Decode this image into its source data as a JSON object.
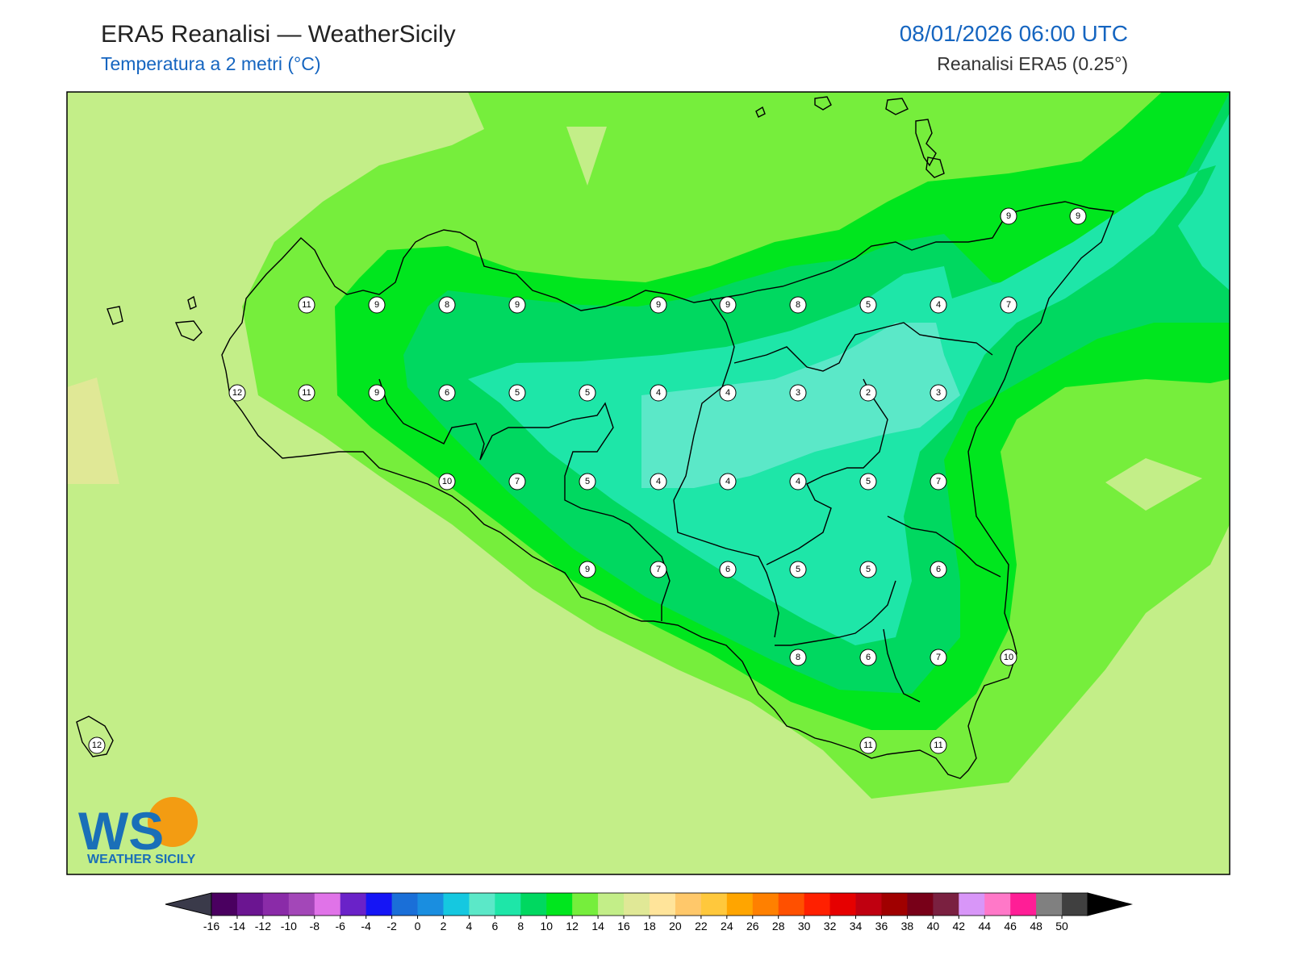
{
  "header": {
    "title": "ERA5 Reanalisi — WeatherSicily",
    "subtitle": "Temperatura a 2 metri (°C)",
    "datetime": "08/01/2026 06:00 UTC",
    "source": "Reanalisi ERA5 (0.25°)"
  },
  "logo": {
    "initials": "WS",
    "name": "WEATHER SICILY"
  },
  "colorbar": {
    "ticks": [
      "-16",
      "-14",
      "-12",
      "-10",
      "-8",
      "-6",
      "-4",
      "-2",
      "0",
      "2",
      "4",
      "6",
      "8",
      "10",
      "12",
      "14",
      "16",
      "18",
      "20",
      "22",
      "24",
      "26",
      "28",
      "30",
      "32",
      "34",
      "36",
      "38",
      "40",
      "42",
      "44",
      "46",
      "48",
      "50"
    ],
    "colors": [
      "#4a0060",
      "#6b1591",
      "#8a2ba8",
      "#a347b8",
      "#e073e8",
      "#6a22c8",
      "#1515f5",
      "#1a6fd8",
      "#1a8ee0",
      "#15c8e0",
      "#5be8c8",
      "#1ee6a8",
      "#00d860",
      "#00e61e",
      "#76ee3c",
      "#c3ee88",
      "#e0e896",
      "#ffe49a",
      "#ffc86a",
      "#ffc83c",
      "#ffa500",
      "#ff8000",
      "#ff5000",
      "#ff2000",
      "#e60000",
      "#c00010",
      "#a00000",
      "#780018",
      "#7a2040",
      "#d896f8",
      "#ff78c8",
      "#ff1e96",
      "#808080",
      "#404040"
    ]
  },
  "temperature_points": [
    {
      "label": "9"
    },
    {
      "label": "9"
    },
    {
      "label": "11"
    },
    {
      "label": "9"
    },
    {
      "label": "8"
    },
    {
      "label": "9"
    },
    {
      "label": "9"
    },
    {
      "label": "9"
    },
    {
      "label": "8"
    },
    {
      "label": "5"
    },
    {
      "label": "4"
    },
    {
      "label": "7"
    },
    {
      "label": "12"
    },
    {
      "label": "11"
    },
    {
      "label": "9"
    },
    {
      "label": "6"
    },
    {
      "label": "5"
    },
    {
      "label": "5"
    },
    {
      "label": "4"
    },
    {
      "label": "4"
    },
    {
      "label": "3"
    },
    {
      "label": "2"
    },
    {
      "label": "3"
    },
    {
      "label": "10"
    },
    {
      "label": "7"
    },
    {
      "label": "5"
    },
    {
      "label": "4"
    },
    {
      "label": "4"
    },
    {
      "label": "4"
    },
    {
      "label": "5"
    },
    {
      "label": "7"
    },
    {
      "label": "9"
    },
    {
      "label": "7"
    },
    {
      "label": "6"
    },
    {
      "label": "5"
    },
    {
      "label": "5"
    },
    {
      "label": "6"
    },
    {
      "label": "8"
    },
    {
      "label": "6"
    },
    {
      "label": "7"
    },
    {
      "label": "10"
    },
    {
      "label": "12"
    },
    {
      "label": "11"
    },
    {
      "label": "11"
    }
  ]
}
